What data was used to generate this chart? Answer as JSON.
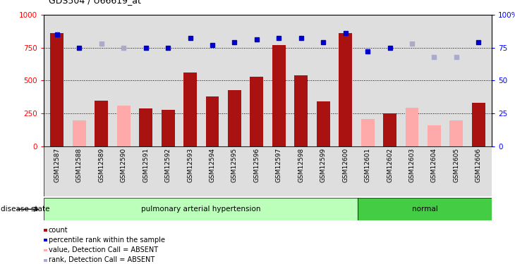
{
  "title": "GDS504 / U66619_at",
  "samples": [
    "GSM12587",
    "GSM12588",
    "GSM12589",
    "GSM12590",
    "GSM12591",
    "GSM12592",
    "GSM12593",
    "GSM12594",
    "GSM12595",
    "GSM12596",
    "GSM12597",
    "GSM12598",
    "GSM12599",
    "GSM12600",
    "GSM12601",
    "GSM12602",
    "GSM12603",
    "GSM12604",
    "GSM12605",
    "GSM12606"
  ],
  "count_values": [
    860,
    200,
    350,
    310,
    290,
    280,
    560,
    380,
    430,
    530,
    770,
    540,
    340,
    860,
    210,
    250,
    295,
    160,
    200,
    330
  ],
  "count_absent": [
    false,
    true,
    false,
    true,
    false,
    false,
    false,
    false,
    false,
    false,
    false,
    false,
    false,
    false,
    true,
    false,
    true,
    true,
    true,
    false
  ],
  "rank_values": [
    85,
    75,
    78,
    75,
    75,
    75,
    82,
    77,
    79,
    81,
    82,
    82,
    79,
    86,
    72,
    75,
    78,
    68,
    68,
    79
  ],
  "rank_absent": [
    false,
    false,
    true,
    true,
    false,
    false,
    false,
    false,
    false,
    false,
    false,
    false,
    false,
    false,
    false,
    false,
    true,
    true,
    true,
    false
  ],
  "disease_groups": [
    {
      "label": "pulmonary arterial hypertension",
      "start": 0,
      "end": 14
    },
    {
      "label": "normal",
      "start": 14,
      "end": 20
    }
  ],
  "disease_label": "disease state",
  "ylim_left": [
    0,
    1000
  ],
  "ylim_right": [
    0,
    100
  ],
  "yticks_left": [
    0,
    250,
    500,
    750,
    1000
  ],
  "yticks_right": [
    0,
    25,
    50,
    75,
    100
  ],
  "ytick_labels_left": [
    "0",
    "250",
    "500",
    "750",
    "1000"
  ],
  "ytick_labels_right": [
    "0",
    "25",
    "50",
    "75",
    "100%"
  ],
  "grid_lines": [
    250,
    500,
    750
  ],
  "bar_color_present": "#aa1111",
  "bar_color_absent": "#ffaaaa",
  "rank_color_present": "#0000cc",
  "rank_color_absent": "#aaaacc",
  "bg_color": "#dedede",
  "group_color_pah": "#bbffbb",
  "group_color_normal": "#44cc44",
  "legend": [
    {
      "label": "count",
      "color": "#aa1111"
    },
    {
      "label": "percentile rank within the sample",
      "color": "#0000cc"
    },
    {
      "label": "value, Detection Call = ABSENT",
      "color": "#ffaaaa"
    },
    {
      "label": "rank, Detection Call = ABSENT",
      "color": "#aaaacc"
    }
  ]
}
